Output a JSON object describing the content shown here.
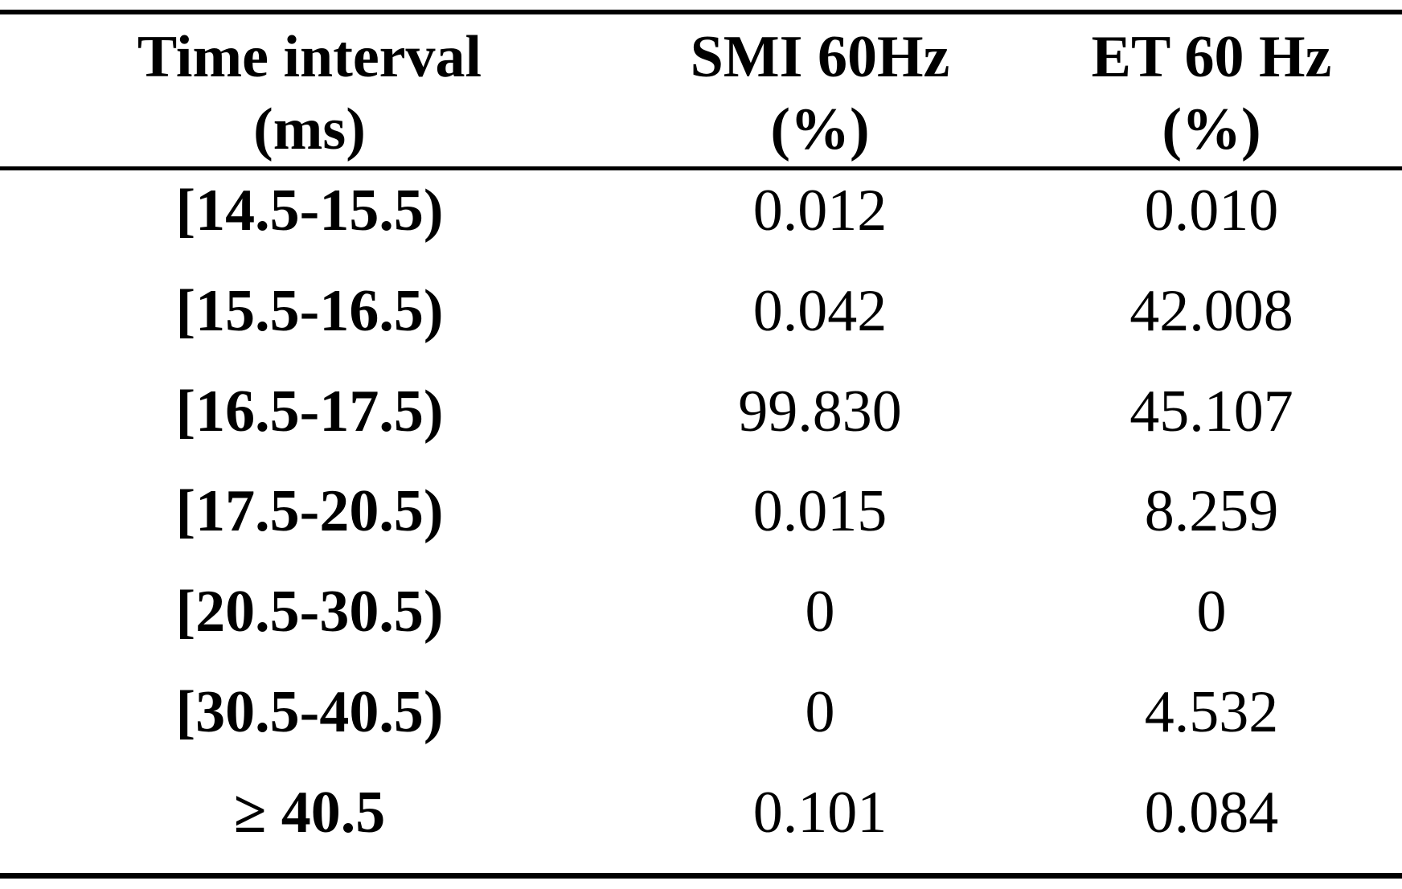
{
  "table": {
    "columns": [
      {
        "line1": "Time interval",
        "line2": "(ms)"
      },
      {
        "line1": "SMI 60Hz",
        "line2": "(%)"
      },
      {
        "line1": "ET 60 Hz",
        "line2": "(%)"
      }
    ],
    "rows": [
      {
        "interval": "[14.5-15.5)",
        "smi": "0.012",
        "et": "0.010"
      },
      {
        "interval": "[15.5-16.5)",
        "smi": "0.042",
        "et": "42.008"
      },
      {
        "interval": "[16.5-17.5)",
        "smi": "99.830",
        "et": "45.107"
      },
      {
        "interval": "[17.5-20.5)",
        "smi": "0.015",
        "et": "8.259"
      },
      {
        "interval": "[20.5-30.5)",
        "smi": "0",
        "et": "0"
      },
      {
        "interval": "[30.5-40.5)",
        "smi": "0",
        "et": "4.532"
      },
      {
        "interval": "≥ 40.5",
        "smi": "0.101",
        "et": "0.084"
      }
    ]
  },
  "chart_data": {
    "type": "table",
    "title": "",
    "columns": [
      "Time interval (ms)",
      "SMI 60Hz (%)",
      "ET 60 Hz (%)"
    ],
    "rows": [
      [
        "[14.5-15.5)",
        0.012,
        0.01
      ],
      [
        "[15.5-16.5)",
        0.042,
        42.008
      ],
      [
        "[16.5-17.5)",
        99.83,
        45.107
      ],
      [
        "[17.5-20.5)",
        0.015,
        8.259
      ],
      [
        "[20.5-30.5)",
        0,
        0
      ],
      [
        "[30.5-40.5)",
        0,
        4.532
      ],
      [
        "≥ 40.5",
        0.101,
        0.084
      ]
    ]
  },
  "colors": {
    "text": "#000000",
    "background": "#ffffff",
    "rule": "#000000"
  }
}
